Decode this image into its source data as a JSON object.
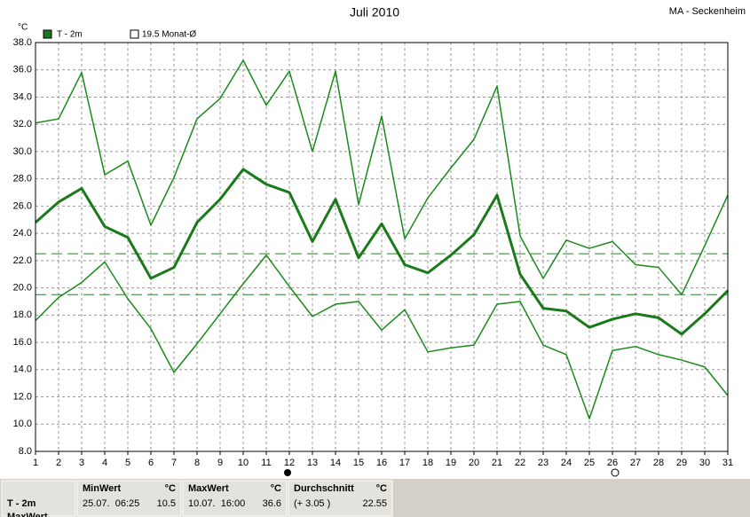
{
  "chart_data": {
    "type": "line",
    "title": "Juli 2010",
    "station": "MA - Seckenheim",
    "y_unit": "°C",
    "x": [
      1,
      2,
      3,
      4,
      5,
      6,
      7,
      8,
      9,
      10,
      11,
      12,
      13,
      14,
      15,
      16,
      17,
      18,
      19,
      20,
      21,
      22,
      23,
      24,
      25,
      26,
      27,
      28,
      29,
      30,
      31
    ],
    "xlim": [
      1,
      31
    ],
    "ylim": [
      8,
      38
    ],
    "yticks": [
      {
        "value": 8,
        "label": "8.0"
      },
      {
        "value": 10,
        "label": "10.0"
      },
      {
        "value": 12,
        "label": "12.0"
      },
      {
        "value": 14,
        "label": "14.0"
      },
      {
        "value": 16,
        "label": "16.0"
      },
      {
        "value": 18,
        "label": "18.0"
      },
      {
        "value": 20,
        "label": "20.0"
      },
      {
        "value": 22,
        "label": "22.0"
      },
      {
        "value": 24,
        "label": "24.0"
      },
      {
        "value": 26,
        "label": "26.0"
      },
      {
        "value": 28,
        "label": "28.0"
      },
      {
        "value": 30,
        "label": "30.0"
      },
      {
        "value": 32,
        "label": "32.0"
      },
      {
        "value": 34,
        "label": "34.0"
      },
      {
        "value": 36,
        "label": "36.0"
      },
      {
        "value": 38,
        "label": "38.0"
      }
    ],
    "grid": true,
    "series": [
      {
        "name": "T - 2m",
        "color": "#1a7a1a",
        "width": 3,
        "values": [
          24.8,
          26.3,
          27.3,
          24.5,
          23.7,
          20.7,
          21.5,
          24.8,
          26.5,
          28.7,
          27.6,
          27.0,
          23.4,
          26.5,
          22.2,
          24.7,
          21.7,
          21.1,
          22.4,
          23.9,
          26.8,
          21.0,
          18.5,
          18.3,
          17.1,
          17.7,
          18.1,
          17.8,
          16.6,
          18.1,
          19.8
        ]
      },
      {
        "color": "#1a8a1a",
        "width": 1.5,
        "values": [
          32.1,
          32.4,
          35.8,
          28.3,
          29.3,
          24.6,
          28.1,
          32.4,
          33.9,
          36.7,
          33.4,
          35.9,
          30.0,
          35.9,
          26.1,
          32.6,
          23.6,
          26.6,
          28.8,
          30.9,
          34.8,
          23.8,
          20.7,
          23.5,
          22.9,
          23.4,
          21.7,
          21.5,
          19.5,
          23.1,
          26.8
        ]
      },
      {
        "color": "#1a8a1a",
        "width": 1.5,
        "values": [
          17.6,
          19.3,
          20.4,
          21.9,
          19.2,
          17.0,
          13.8,
          15.9,
          18.1,
          20.3,
          22.4,
          20.1,
          17.9,
          18.8,
          19.0,
          16.9,
          18.4,
          15.3,
          15.6,
          15.8,
          18.8,
          19.0,
          15.8,
          15.1,
          10.4,
          15.4,
          15.7,
          15.1,
          14.7,
          14.2,
          12.1
        ]
      }
    ],
    "reference_lines": [
      {
        "value": 22.5,
        "color": "#2e7d2e"
      },
      {
        "value": 19.5,
        "color": "#2e7d2e",
        "label": "19.5 Monat-Ø"
      }
    ],
    "stats_table": {
      "row_label": "T - 2m",
      "next_row_label": "MaxWert",
      "columns": [
        {
          "header": "MinWert",
          "unit": "°C",
          "time": "25.07.  06:25",
          "value": "10.5"
        },
        {
          "header": "MaxWert",
          "unit": "°C",
          "time": "10.07.  16:00",
          "value": "36.6"
        },
        {
          "header": "Durchschnitt",
          "unit": "°C",
          "time": "(+ 3.05 )",
          "value": "22.55"
        }
      ]
    }
  }
}
